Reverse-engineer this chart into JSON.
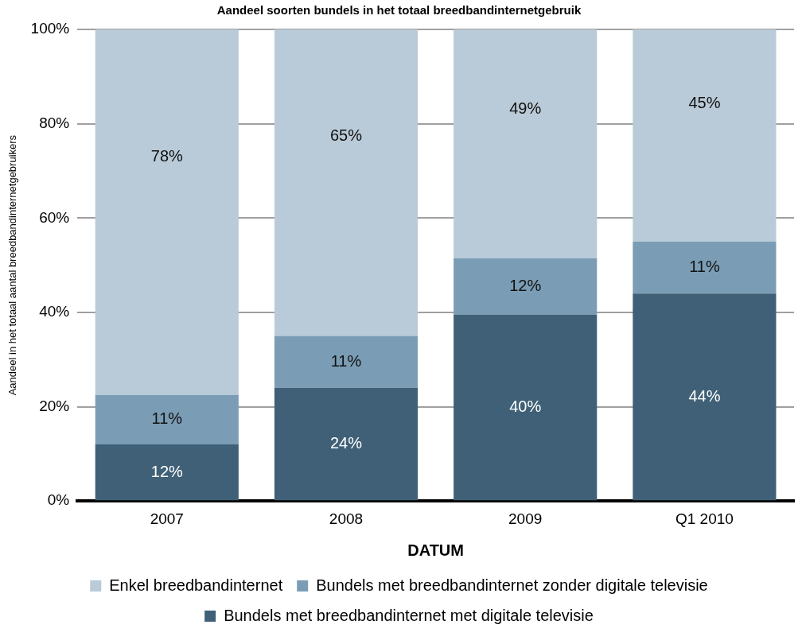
{
  "chart_data": {
    "type": "bar",
    "title": "Aandeel soorten bundels in het totaal breedbandinternetgebruik",
    "xlabel": "DATUM",
    "ylabel": "Aandeel in het totaal aantal breedbandinternetgebruikers",
    "categories": [
      "2007",
      "2008",
      "2009",
      "Q1 2010"
    ],
    "stacked": true,
    "series": [
      {
        "name": "Bundels met breedbandinternet met digitale televisie",
        "color": "#3f6076",
        "values": [
          12,
          24,
          39.5,
          44
        ],
        "value_labels": [
          "12%",
          "24%",
          "40%",
          "44%"
        ]
      },
      {
        "name": "Bundels met breedbandinternet zonder digitale televisie",
        "color": "#7a9db5",
        "values": [
          10.5,
          11,
          12,
          11
        ],
        "value_labels": [
          "11%",
          "11%",
          "12%",
          "11%"
        ]
      },
      {
        "name": "Enkel breedbandinternet",
        "color": "#b9cad8",
        "values": [
          77.5,
          65,
          48.5,
          45
        ],
        "value_labels": [
          "78%",
          "65%",
          "49%",
          "45%"
        ]
      }
    ],
    "ylim": [
      0,
      100
    ],
    "yticks": [
      {
        "value": 0,
        "label": "0%"
      },
      {
        "value": 20,
        "label": "20%"
      },
      {
        "value": 40,
        "label": "40%"
      },
      {
        "value": 60,
        "label": "60%"
      },
      {
        "value": 80,
        "label": "80%"
      },
      {
        "value": 100,
        "label": "100%"
      }
    ],
    "grid": "y",
    "legend": "bottom"
  }
}
